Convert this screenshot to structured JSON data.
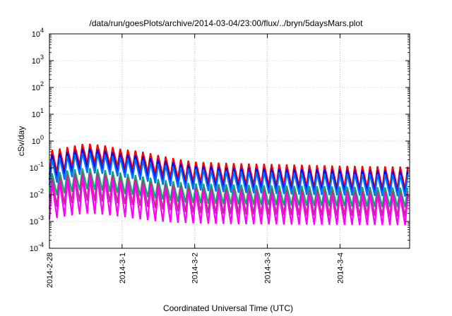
{
  "chart_data": {
    "type": "line",
    "title": "/data/run/goesPlots/archive/2014-03-04/23:00/flux/../bryn/5daysMars.plot",
    "xlabel": "Coordinated Universal Time (UTC)",
    "ylabel": "cSv/day",
    "yscale": "log",
    "ylim": [
      0.0001,
      10000
    ],
    "xlim": [
      "2014-02-28T00:00",
      "2014-03-04T23:00"
    ],
    "grid": true,
    "y_ticks": [
      {
        "value": 0.0001,
        "base": "10",
        "exp": "-4"
      },
      {
        "value": 0.001,
        "base": "10",
        "exp": "-3"
      },
      {
        "value": 0.01,
        "base": "10",
        "exp": "-2"
      },
      {
        "value": 0.1,
        "base": "10",
        "exp": "-1"
      },
      {
        "value": 1,
        "base": "10",
        "exp": "0"
      },
      {
        "value": 10,
        "base": "10",
        "exp": "1"
      },
      {
        "value": 100,
        "base": "10",
        "exp": "2"
      },
      {
        "value": 1000,
        "base": "10",
        "exp": "3"
      },
      {
        "value": 10000,
        "base": "10",
        "exp": "4"
      }
    ],
    "x_ticks": [
      {
        "value": "2014-02-28T00:00",
        "label": "2014-2-28"
      },
      {
        "value": "2014-03-01T00:00",
        "label": "2014-3-1"
      },
      {
        "value": "2014-03-02T00:00",
        "label": "2014-3-2"
      },
      {
        "value": "2014-03-03T00:00",
        "label": "2014-3-3"
      },
      {
        "value": "2014-03-04T00:00",
        "label": "2014-3-4"
      }
    ],
    "cycle_hours": 2.5,
    "series": [
      {
        "color": "#ff0000",
        "times": [
          "2014-02-28T00:00",
          "2014-02-28T06:00",
          "2014-02-28T12:00",
          "2014-02-28T18:00",
          "2014-03-01T00:00",
          "2014-03-01T06:00",
          "2014-03-01T12:00",
          "2014-03-01T18:00",
          "2014-03-02T00:00",
          "2014-03-02T12:00",
          "2014-03-03T00:00",
          "2014-03-03T12:00",
          "2014-03-04T00:00",
          "2014-03-04T12:00",
          "2014-03-04T23:00"
        ],
        "peaks": [
          0.45,
          0.6,
          0.82,
          0.7,
          0.5,
          0.42,
          0.3,
          0.22,
          0.17,
          0.15,
          0.14,
          0.13,
          0.12,
          0.115,
          0.11
        ],
        "troughs": [
          0.055,
          0.09,
          0.15,
          0.14,
          0.1,
          0.08,
          0.055,
          0.04,
          0.03,
          0.025,
          0.022,
          0.02,
          0.018,
          0.017,
          0.016
        ]
      },
      {
        "color": "#0000ff",
        "times": [
          "2014-02-28T00:00",
          "2014-02-28T06:00",
          "2014-02-28T12:00",
          "2014-02-28T18:00",
          "2014-03-01T00:00",
          "2014-03-01T06:00",
          "2014-03-01T12:00",
          "2014-03-01T18:00",
          "2014-03-02T00:00",
          "2014-03-02T12:00",
          "2014-03-03T00:00",
          "2014-03-03T12:00",
          "2014-03-04T00:00",
          "2014-03-04T12:00",
          "2014-03-04T23:00"
        ],
        "peaks": [
          0.3,
          0.4,
          0.55,
          0.45,
          0.33,
          0.28,
          0.2,
          0.15,
          0.12,
          0.1,
          0.095,
          0.09,
          0.085,
          0.08,
          0.075
        ],
        "troughs": [
          0.035,
          0.06,
          0.1,
          0.09,
          0.065,
          0.05,
          0.035,
          0.026,
          0.02,
          0.017,
          0.015,
          0.014,
          0.013,
          0.012,
          0.011
        ]
      },
      {
        "color": "#0070ff",
        "times": [
          "2014-02-28T00:00",
          "2014-02-28T06:00",
          "2014-02-28T12:00",
          "2014-02-28T18:00",
          "2014-03-01T00:00",
          "2014-03-01T06:00",
          "2014-03-01T12:00",
          "2014-03-01T18:00",
          "2014-03-02T00:00",
          "2014-03-02T12:00",
          "2014-03-03T00:00",
          "2014-03-03T12:00",
          "2014-03-04T00:00",
          "2014-03-04T12:00",
          "2014-03-04T23:00"
        ],
        "peaks": [
          0.2,
          0.28,
          0.38,
          0.32,
          0.24,
          0.2,
          0.14,
          0.11,
          0.09,
          0.075,
          0.07,
          0.065,
          0.06,
          0.058,
          0.055
        ],
        "troughs": [
          0.022,
          0.04,
          0.065,
          0.06,
          0.045,
          0.035,
          0.025,
          0.019,
          0.015,
          0.012,
          0.011,
          0.01,
          0.0095,
          0.009,
          0.0085
        ]
      },
      {
        "color": "#00b070",
        "times": [
          "2014-02-28T00:00",
          "2014-02-28T06:00",
          "2014-02-28T12:00",
          "2014-02-28T18:00",
          "2014-03-01T00:00",
          "2014-03-01T06:00",
          "2014-03-01T12:00",
          "2014-03-01T18:00",
          "2014-03-02T00:00",
          "2014-03-02T12:00",
          "2014-03-03T00:00",
          "2014-03-03T12:00",
          "2014-03-04T00:00",
          "2014-03-04T12:00",
          "2014-03-04T23:00"
        ],
        "peaks": [
          0.06,
          0.08,
          0.1,
          0.085,
          0.065,
          0.05,
          0.038,
          0.03,
          0.026,
          0.024,
          0.022,
          0.021,
          0.02,
          0.019,
          0.018
        ],
        "troughs": [
          0.008,
          0.012,
          0.016,
          0.014,
          0.011,
          0.009,
          0.007,
          0.0055,
          0.0048,
          0.0044,
          0.0041,
          0.0039,
          0.0037,
          0.0035,
          0.0034
        ]
      },
      {
        "color": "#c0308a",
        "times": [
          "2014-02-28T00:00",
          "2014-02-28T06:00",
          "2014-02-28T12:00",
          "2014-02-28T18:00",
          "2014-03-01T00:00",
          "2014-03-01T06:00",
          "2014-03-01T12:00",
          "2014-03-01T18:00",
          "2014-03-02T00:00",
          "2014-03-02T12:00",
          "2014-03-03T00:00",
          "2014-03-03T12:00",
          "2014-03-04T00:00",
          "2014-03-04T12:00",
          "2014-03-04T23:00"
        ],
        "peaks": [
          0.04,
          0.055,
          0.07,
          0.06,
          0.045,
          0.036,
          0.028,
          0.022,
          0.019,
          0.017,
          0.016,
          0.015,
          0.0145,
          0.014,
          0.0135
        ],
        "troughs": [
          0.003,
          0.0045,
          0.006,
          0.0055,
          0.0045,
          0.0038,
          0.003,
          0.0024,
          0.0021,
          0.0019,
          0.0018,
          0.0017,
          0.0016,
          0.0016,
          0.0015
        ]
      },
      {
        "color": "#ff00ff",
        "times": [
          "2014-02-28T00:00",
          "2014-02-28T06:00",
          "2014-02-28T12:00",
          "2014-02-28T18:00",
          "2014-03-01T00:00",
          "2014-03-01T06:00",
          "2014-03-01T12:00",
          "2014-03-01T18:00",
          "2014-03-02T00:00",
          "2014-03-02T12:00",
          "2014-03-03T00:00",
          "2014-03-03T12:00",
          "2014-03-04T00:00",
          "2014-03-04T12:00",
          "2014-03-04T23:00"
        ],
        "peaks": [
          0.025,
          0.034,
          0.045,
          0.04,
          0.03,
          0.024,
          0.018,
          0.015,
          0.013,
          0.012,
          0.011,
          0.0105,
          0.01,
          0.0098,
          0.0095
        ],
        "troughs": [
          0.0012,
          0.0016,
          0.002,
          0.0018,
          0.0015,
          0.0012,
          0.001,
          0.0009,
          0.00085,
          0.0008,
          0.00078,
          0.00076,
          0.00075,
          0.00074,
          0.00073
        ]
      }
    ]
  }
}
